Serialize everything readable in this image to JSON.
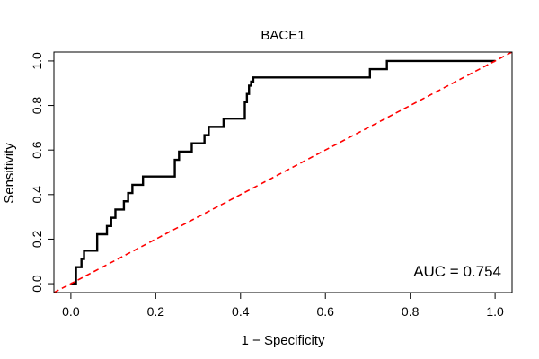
{
  "chart_data": {
    "type": "line",
    "title": "BACE1",
    "xlabel": "1 − Specificity",
    "ylabel": "Sensitivity",
    "xlim": [
      -0.04,
      1.04
    ],
    "ylim": [
      -0.04,
      1.04
    ],
    "xticks": [
      0.0,
      0.2,
      0.4,
      0.6,
      0.8,
      1.0
    ],
    "xtick_labels": [
      "0.0",
      "0.2",
      "0.4",
      "0.6",
      "0.8",
      "1.0"
    ],
    "yticks": [
      0.0,
      0.2,
      0.4,
      0.6,
      0.8,
      1.0
    ],
    "ytick_labels": [
      "0.0",
      "0.2",
      "0.4",
      "0.6",
      "0.8",
      "1.0"
    ],
    "grid": false,
    "annotation": "AUC = 0.754",
    "series": [
      {
        "name": "ROC curve",
        "color": "#000000",
        "style": "solid",
        "x": [
          0.0,
          0.0,
          0.012,
          0.012,
          0.025,
          0.025,
          0.031,
          0.031,
          0.062,
          0.062,
          0.085,
          0.085,
          0.095,
          0.095,
          0.105,
          0.105,
          0.125,
          0.125,
          0.135,
          0.135,
          0.145,
          0.145,
          0.17,
          0.17,
          0.245,
          0.245,
          0.255,
          0.255,
          0.285,
          0.285,
          0.315,
          0.315,
          0.325,
          0.325,
          0.36,
          0.36,
          0.41,
          0.41,
          0.415,
          0.415,
          0.42,
          0.42,
          0.425,
          0.425,
          0.43,
          0.43,
          0.705,
          0.705,
          0.745,
          0.745,
          1.0
        ],
        "y": [
          0.0,
          0.0,
          0.0,
          0.074,
          0.074,
          0.111,
          0.111,
          0.148,
          0.148,
          0.222,
          0.222,
          0.259,
          0.259,
          0.296,
          0.296,
          0.333,
          0.333,
          0.37,
          0.37,
          0.407,
          0.407,
          0.444,
          0.444,
          0.481,
          0.481,
          0.556,
          0.556,
          0.593,
          0.593,
          0.63,
          0.63,
          0.667,
          0.667,
          0.704,
          0.704,
          0.741,
          0.741,
          0.815,
          0.815,
          0.852,
          0.852,
          0.889,
          0.889,
          0.907,
          0.907,
          0.926,
          0.926,
          0.963,
          0.963,
          1.0,
          1.0
        ]
      },
      {
        "name": "Reference diagonal",
        "color": "#ff0000",
        "style": "dashed",
        "x": [
          -0.04,
          1.04
        ],
        "y": [
          -0.04,
          1.04
        ]
      }
    ]
  }
}
